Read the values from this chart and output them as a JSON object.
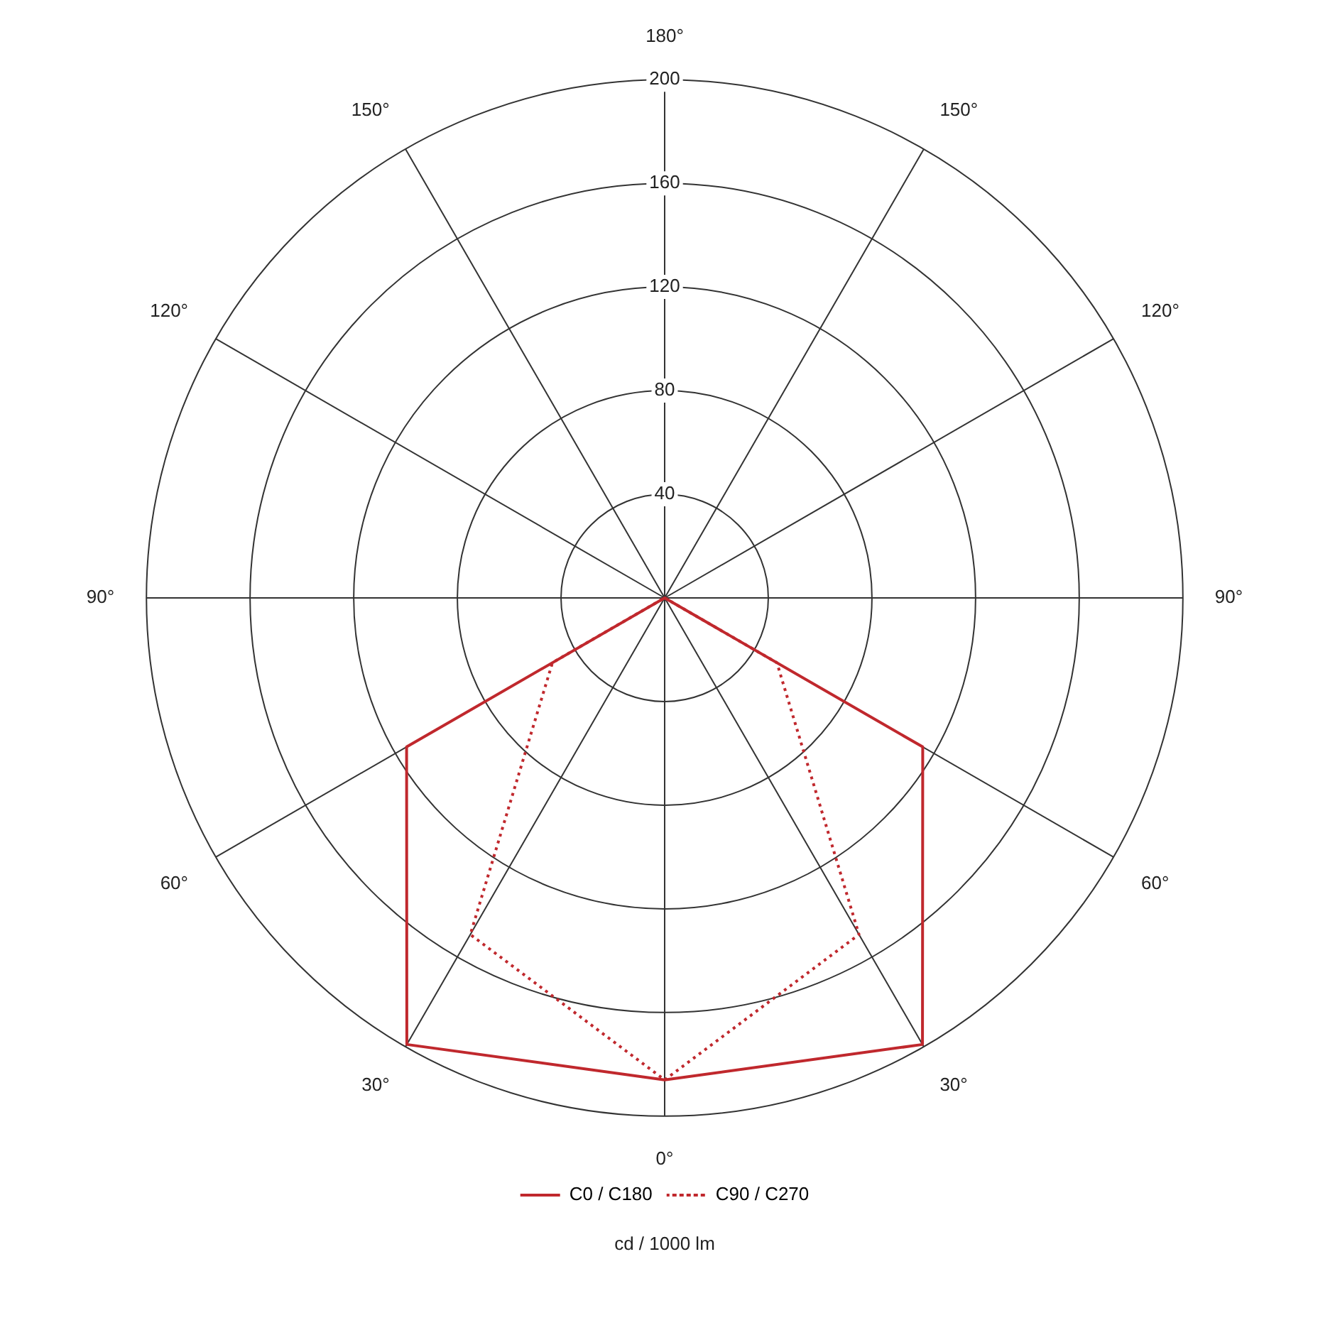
{
  "chart_data": {
    "type": "radar",
    "xlabel": "cd / 1000 lm",
    "categories": [
      "180°",
      "150°",
      "120°",
      "90°",
      "60°",
      "30°",
      "0°",
      "30°",
      "60°",
      "90°",
      "120°",
      "150°"
    ],
    "series": [
      {
        "name": "C0 / C180",
        "color": "#c0282d",
        "line_style": "solid",
        "values": [
          0,
          0,
          0,
          0,
          115,
          199,
          186,
          199,
          115,
          0,
          0,
          0
        ]
      },
      {
        "name": "C90 / C270",
        "color": "#c0282d",
        "line_style": "dotted",
        "values": [
          0,
          0,
          0,
          0,
          50,
          150,
          186,
          150,
          50,
          0,
          0,
          0
        ]
      }
    ],
    "ylim": [
      0,
      200
    ],
    "yticks": [
      40,
      80,
      120,
      160,
      200
    ],
    "grid": true,
    "legend": "bottom",
    "marker": "none"
  }
}
